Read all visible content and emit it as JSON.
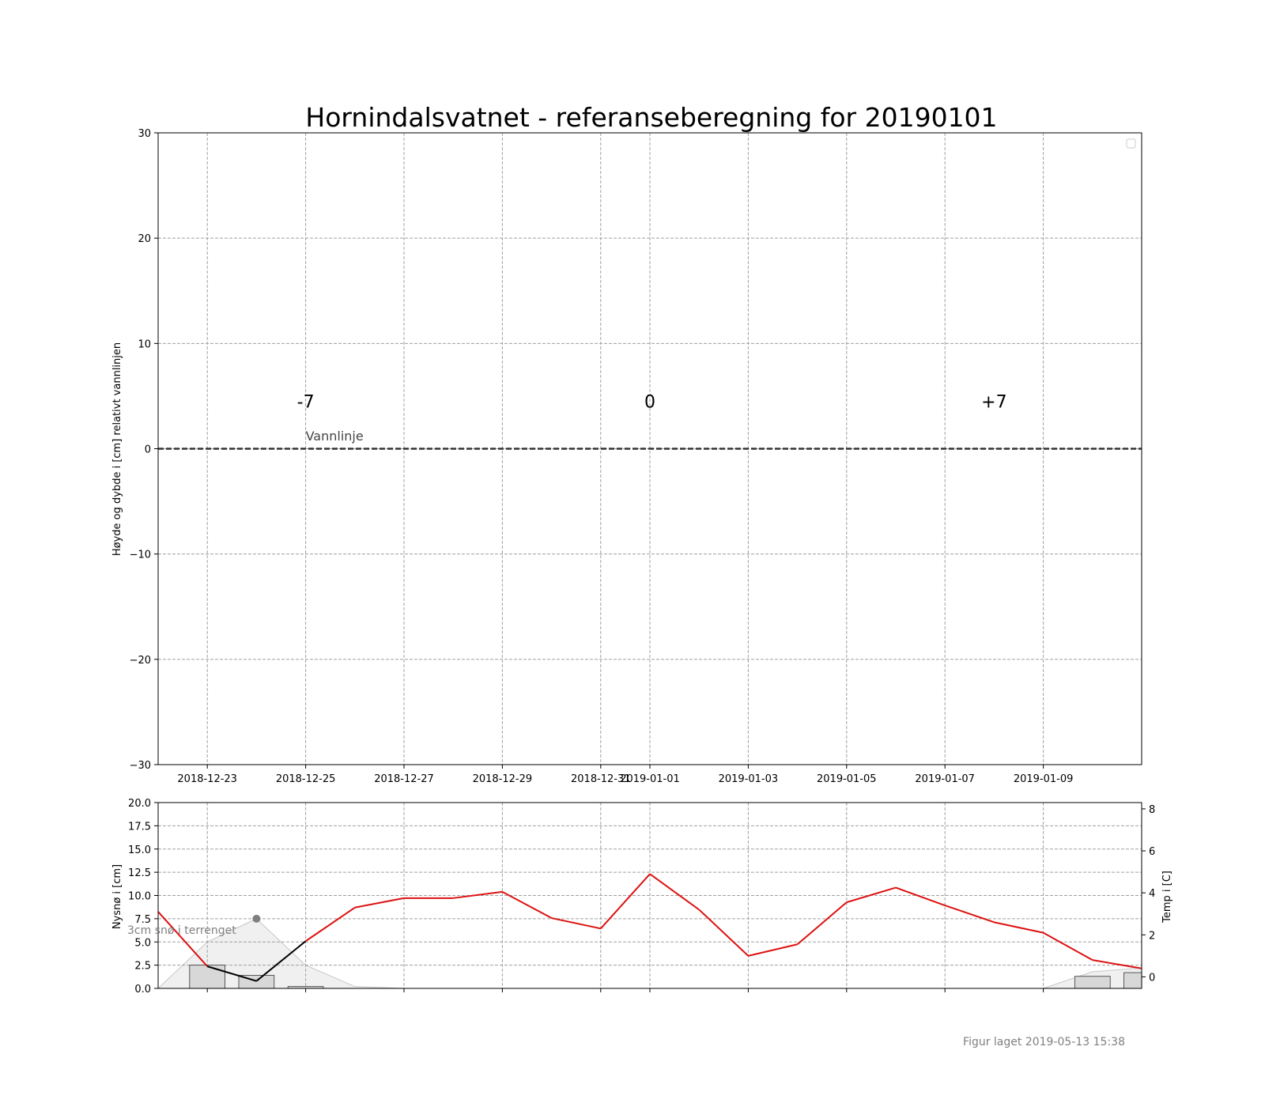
{
  "chart_data": [
    {
      "type": "line",
      "title": "Hornindalsvatnet - referanseberegning for 20190101",
      "ylabel": "Høyde og dybde i [cm] relativt vannlinjen",
      "xlabel": "",
      "ylim": [
        -30,
        30
      ],
      "xlim": [
        "2018-12-22",
        "2019-01-11"
      ],
      "yticks": [
        -30,
        -20,
        -10,
        0,
        10,
        20,
        30
      ],
      "ytick_labels": [
        "−30",
        "−20",
        "−10",
        "0",
        "10",
        "20",
        "30"
      ],
      "xticks": [
        "2018-12-23",
        "2018-12-25",
        "2018-12-27",
        "2018-12-29",
        "2018-12-31",
        "2019-01-01",
        "2019-01-03",
        "2019-01-05",
        "2019-01-07",
        "2019-01-09"
      ],
      "grid": true,
      "legend": "top-right",
      "series": [
        {
          "x": [
            "2018-12-22",
            "2019-01-11"
          ],
          "y": [
            0,
            0
          ],
          "color": "#333333",
          "style": "dashed"
        }
      ],
      "annotations": [
        {
          "text": "-7",
          "x": "2018-12-25",
          "y": 4.5
        },
        {
          "text": "0",
          "x": "2019-01-01",
          "y": 4.5
        },
        {
          "text": "+7",
          "x": "2019-01-08",
          "y": 4.5
        },
        {
          "text": "Vannlinje",
          "x": "2018-12-25",
          "y": 1.0
        }
      ]
    },
    {
      "type": "bar",
      "ylabel": "Nysnø i [cm]",
      "y2label": "Temp i [C]",
      "ylim": [
        0,
        20
      ],
      "y2lim": [
        -0.55,
        8.3
      ],
      "xlim": [
        "2018-12-22",
        "2019-01-11"
      ],
      "yticks": [
        0,
        2.5,
        5,
        7.5,
        10,
        12.5,
        15,
        17.5,
        20
      ],
      "ytick_labels": [
        "0.0",
        "2.5",
        "5.0",
        "7.5",
        "10.0",
        "12.5",
        "15.0",
        "17.5",
        "20.0"
      ],
      "y2ticks": [
        0,
        2,
        4,
        6,
        8
      ],
      "grid": true,
      "snow_bars": {
        "x": [
          "2018-12-23",
          "2018-12-24",
          "2018-12-25",
          "2019-01-10",
          "2019-01-11"
        ],
        "values": [
          2.5,
          1.4,
          0.2,
          1.3,
          1.7
        ]
      },
      "snow_depth_area": {
        "x": [
          "2018-12-22",
          "2018-12-23",
          "2018-12-24",
          "2018-12-25",
          "2018-12-26",
          "2018-12-27",
          "2019-01-09",
          "2019-01-10",
          "2019-01-11"
        ],
        "values": [
          0,
          5.0,
          7.5,
          2.5,
          0.2,
          0,
          0,
          1.8,
          2.2
        ]
      },
      "temperature": {
        "x": [
          "2018-12-22",
          "2018-12-23",
          "2018-12-24",
          "2018-12-25",
          "2018-12-26",
          "2018-12-27",
          "2018-12-28",
          "2018-12-29",
          "2018-12-30",
          "2018-12-31",
          "2019-01-01",
          "2019-01-02",
          "2019-01-03",
          "2019-01-04",
          "2019-01-05",
          "2019-01-06",
          "2019-01-07",
          "2019-01-08",
          "2019-01-09",
          "2019-01-10",
          "2019-01-11"
        ],
        "values": [
          3.1,
          0.5,
          -0.2,
          1.7,
          3.3,
          3.75,
          3.75,
          4.05,
          2.8,
          2.3,
          4.9,
          3.2,
          1.0,
          1.55,
          3.55,
          4.25,
          3.4,
          2.6,
          2.1,
          0.8,
          0.4
        ],
        "below_zero_color": "#000000",
        "above_zero_color": "#dd1111"
      },
      "snow_marker": {
        "x": "2018-12-24",
        "y": 7.5,
        "label": "3cm snø i terrenget"
      }
    }
  ],
  "footer": "Figur laget 2019-05-13 15:38"
}
